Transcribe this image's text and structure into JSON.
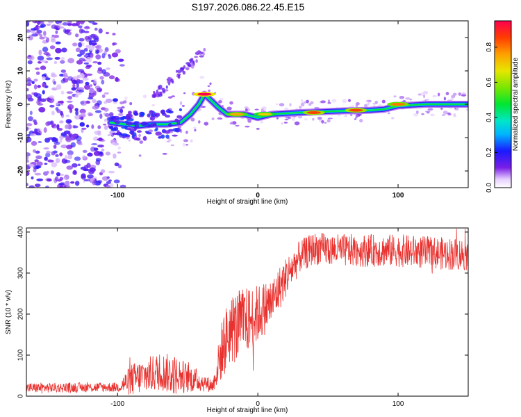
{
  "title": "S197.2026.086.22.45.E15",
  "chart_data": [
    {
      "type": "heatmap",
      "xlabel": "Height of straight line (km)",
      "ylabel": "Frequency (Hz)",
      "xlim": [
        -165,
        150
      ],
      "ylim": [
        -25,
        25
      ],
      "x_ticks": [
        -100,
        0,
        100
      ],
      "x_tick_labels": [
        "-100",
        "0",
        "100"
      ],
      "y_ticks": [
        -20,
        -10,
        0,
        10,
        20
      ],
      "y_tick_labels": [
        "-20",
        "-10",
        "0",
        "10",
        "20"
      ],
      "colorbar": {
        "label": "Normalized spectral amplitude",
        "range": [
          0,
          0.95
        ],
        "ticks": [
          0.0,
          0.2,
          0.4,
          0.6,
          0.8
        ],
        "tick_labels": [
          "0.0",
          "0.2",
          "0.4",
          "0.6",
          "0.8"
        ]
      },
      "ridge": [
        {
          "x": -105,
          "y": -5.5
        },
        {
          "x": -95,
          "y": -6
        },
        {
          "x": -85,
          "y": -6.5
        },
        {
          "x": -75,
          "y": -6
        },
        {
          "x": -65,
          "y": -6
        },
        {
          "x": -55,
          "y": -5.5
        },
        {
          "x": -48,
          "y": -3
        },
        {
          "x": -42,
          "y": 0
        },
        {
          "x": -38,
          "y": 3
        },
        {
          "x": -33,
          "y": 1
        },
        {
          "x": -28,
          "y": -1
        },
        {
          "x": -22,
          "y": -3
        },
        {
          "x": -10,
          "y": -3
        },
        {
          "x": 0,
          "y": -4
        },
        {
          "x": 10,
          "y": -3
        },
        {
          "x": 30,
          "y": -2.5
        },
        {
          "x": 60,
          "y": -2
        },
        {
          "x": 80,
          "y": -1.8
        },
        {
          "x": 90,
          "y": -1.5
        },
        {
          "x": 100,
          "y": -0.5
        },
        {
          "x": 120,
          "y": 0
        },
        {
          "x": 150,
          "y": 0
        }
      ],
      "ridge_peaks": [
        {
          "x": -38,
          "y": 3,
          "amp": 0.95
        },
        {
          "x": 40,
          "y": -2.5,
          "amp": 0.85
        },
        {
          "x": 70,
          "y": -1.8,
          "amp": 0.85
        },
        {
          "x": 100,
          "y": 0,
          "amp": 0.8
        },
        {
          "x": -15,
          "y": -3,
          "amp": 0.75
        },
        {
          "x": 5,
          "y": -3,
          "amp": 0.7
        }
      ],
      "noise_region": {
        "x_range": [
          -165,
          -100
        ],
        "y_range": [
          -25,
          25
        ],
        "amp_range": [
          0.05,
          0.2
        ]
      }
    },
    {
      "type": "line",
      "xlabel": "Height of straight line (km)",
      "ylabel": "SNR (10 * v/v)",
      "xlim": [
        -165,
        150
      ],
      "ylim": [
        0,
        410
      ],
      "x_ticks": [
        -100,
        0,
        100
      ],
      "x_tick_labels": [
        "-100",
        "0",
        "100"
      ],
      "y_ticks": [
        0,
        100,
        200,
        300,
        400
      ],
      "y_tick_labels": [
        "0",
        "100",
        "200",
        "300",
        "400"
      ],
      "color": "#e8322f",
      "trend": [
        {
          "x": -165,
          "y": 20
        },
        {
          "x": -100,
          "y": 22
        },
        {
          "x": -90,
          "y": 40
        },
        {
          "x": -70,
          "y": 60
        },
        {
          "x": -50,
          "y": 45
        },
        {
          "x": -40,
          "y": 35
        },
        {
          "x": -32,
          "y": 25
        },
        {
          "x": -28,
          "y": 80
        },
        {
          "x": -25,
          "y": 120
        },
        {
          "x": -20,
          "y": 160
        },
        {
          "x": -10,
          "y": 180
        },
        {
          "x": 0,
          "y": 200
        },
        {
          "x": 10,
          "y": 230
        },
        {
          "x": 20,
          "y": 290
        },
        {
          "x": 30,
          "y": 340
        },
        {
          "x": 40,
          "y": 360
        },
        {
          "x": 60,
          "y": 355
        },
        {
          "x": 80,
          "y": 355
        },
        {
          "x": 100,
          "y": 355
        },
        {
          "x": 120,
          "y": 350
        },
        {
          "x": 150,
          "y": 345
        }
      ],
      "amplitude": [
        {
          "x": -165,
          "y": 12
        },
        {
          "x": -100,
          "y": 12
        },
        {
          "x": -90,
          "y": 40
        },
        {
          "x": -60,
          "y": 50
        },
        {
          "x": -45,
          "y": 30
        },
        {
          "x": -32,
          "y": 15
        },
        {
          "x": -25,
          "y": 80
        },
        {
          "x": -15,
          "y": 90
        },
        {
          "x": 10,
          "y": 60
        },
        {
          "x": 30,
          "y": 40
        },
        {
          "x": 150,
          "y": 40
        }
      ]
    }
  ]
}
